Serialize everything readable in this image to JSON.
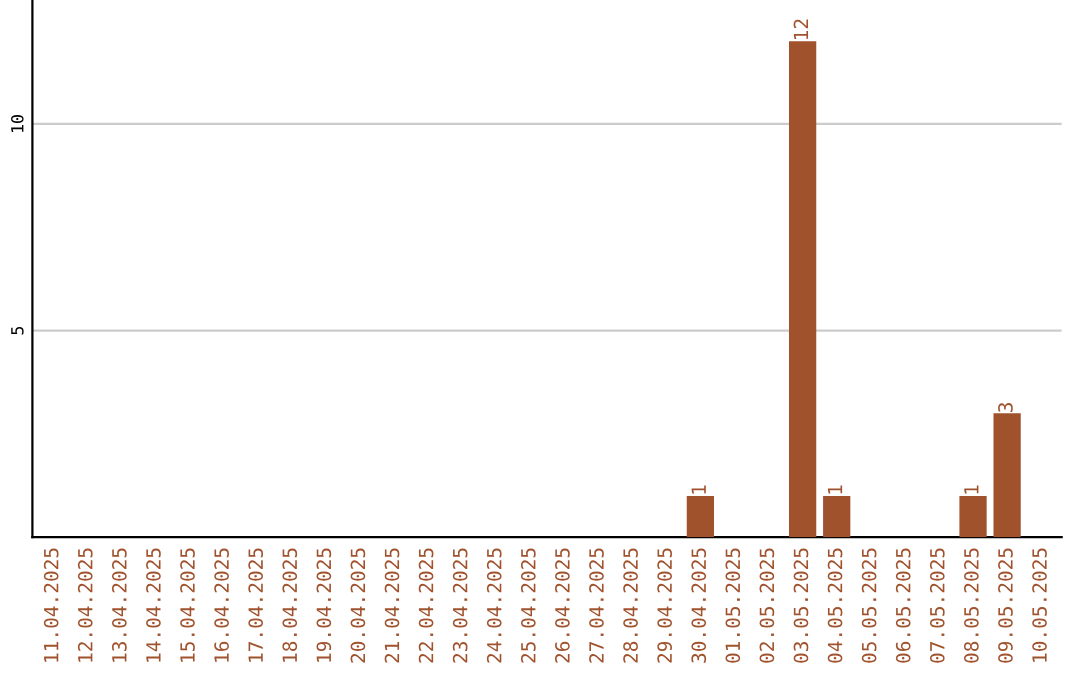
{
  "chart_data": {
    "type": "bar",
    "categories": [
      "11.04.2025",
      "12.04.2025",
      "13.04.2025",
      "14.04.2025",
      "15.04.2025",
      "16.04.2025",
      "17.04.2025",
      "18.04.2025",
      "19.04.2025",
      "20.04.2025",
      "21.04.2025",
      "22.04.2025",
      "23.04.2025",
      "24.04.2025",
      "25.04.2025",
      "26.04.2025",
      "27.04.2025",
      "28.04.2025",
      "29.04.2025",
      "30.04.2025",
      "01.05.2025",
      "02.05.2025",
      "03.05.2025",
      "04.05.2025",
      "05.05.2025",
      "06.05.2025",
      "07.05.2025",
      "08.05.2025",
      "09.05.2025",
      "10.05.2025"
    ],
    "values": [
      0,
      0,
      0,
      0,
      0,
      0,
      0,
      0,
      0,
      0,
      0,
      0,
      0,
      0,
      0,
      0,
      0,
      0,
      0,
      1,
      0,
      0,
      12,
      1,
      0,
      0,
      0,
      1,
      3,
      0
    ],
    "value_labels": [
      null,
      null,
      null,
      null,
      null,
      null,
      null,
      null,
      null,
      null,
      null,
      null,
      null,
      null,
      null,
      null,
      null,
      null,
      null,
      "1",
      null,
      null,
      "12",
      "1",
      null,
      null,
      null,
      "1",
      "3",
      null
    ],
    "color": "#a0522d",
    "ylim": [
      0,
      13
    ],
    "yticks": [
      5,
      10
    ],
    "grid": "y"
  }
}
